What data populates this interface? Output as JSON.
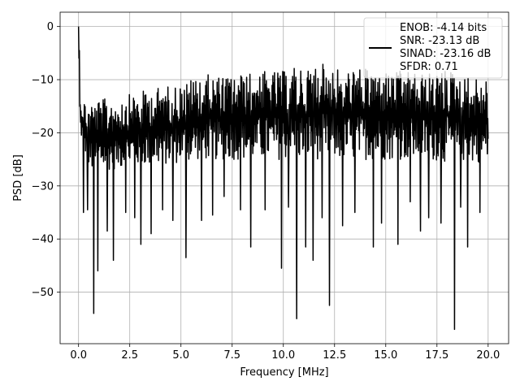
{
  "chart_data": {
    "type": "line",
    "title": "",
    "xlabel": "Frequency [MHz]",
    "ylabel": "PSD [dB]",
    "xlim": [
      -0.9,
      21.0
    ],
    "ylim": [
      -59.7,
      2.7
    ],
    "xticks": [
      0.0,
      2.5,
      5.0,
      7.5,
      10.0,
      12.5,
      15.0,
      17.5,
      20.0
    ],
    "xtick_labels": [
      "0.0",
      "2.5",
      "5.0",
      "7.5",
      "10.0",
      "12.5",
      "15.0",
      "17.5",
      "20.0"
    ],
    "yticks": [
      0,
      -10,
      -20,
      -30,
      -40,
      -50
    ],
    "ytick_labels": [
      "0",
      "−10",
      "−20",
      "−30",
      "−40",
      "−50"
    ],
    "grid": true,
    "line_color": "#000000",
    "legend": {
      "placement": "top-right",
      "entries": [
        "ENOB: -4.14 bits",
        "SNR: -23.13 dB",
        "SINAD: -23.16 dB",
        "SFDR: 0.71"
      ]
    },
    "series": [
      {
        "x_range": [
          0.0,
          20.0
        ],
        "approx_points": 1000,
        "upper_envelope": [
          [
            0.0,
            0.0
          ],
          [
            0.05,
            -3
          ],
          [
            0.1,
            -13
          ],
          [
            0.5,
            -13.5
          ],
          [
            1.0,
            -13
          ],
          [
            2.0,
            -12.5
          ],
          [
            3.0,
            -11.5
          ],
          [
            4.0,
            -10.5
          ],
          [
            5.0,
            -10
          ],
          [
            6.0,
            -8
          ],
          [
            7.0,
            -8.5
          ],
          [
            8.0,
            -8
          ],
          [
            9.0,
            -7.5
          ],
          [
            10.0,
            -7.5
          ],
          [
            11.0,
            -6
          ],
          [
            12.0,
            -6
          ],
          [
            13.0,
            -7
          ],
          [
            14.0,
            -7
          ],
          [
            15.0,
            -7.5
          ],
          [
            16.0,
            -7.5
          ],
          [
            17.0,
            -8
          ],
          [
            18.0,
            -7
          ],
          [
            19.0,
            -8.5
          ],
          [
            20.0,
            -9
          ]
        ],
        "lower_envelope": [
          [
            0.0,
            -19
          ],
          [
            0.5,
            -28
          ],
          [
            1.0,
            -28
          ],
          [
            2.0,
            -27.5
          ],
          [
            3.0,
            -27
          ],
          [
            4.0,
            -27
          ],
          [
            5.0,
            -26.5
          ],
          [
            6.0,
            -26
          ],
          [
            7.0,
            -26
          ],
          [
            8.0,
            -26
          ],
          [
            9.0,
            -26
          ],
          [
            10.0,
            -26
          ],
          [
            11.0,
            -26
          ],
          [
            12.0,
            -26
          ],
          [
            13.0,
            -26
          ],
          [
            14.0,
            -26
          ],
          [
            15.0,
            -26
          ],
          [
            16.0,
            -26
          ],
          [
            17.0,
            -26
          ],
          [
            18.0,
            -26.5
          ],
          [
            19.0,
            -26.5
          ],
          [
            20.0,
            -26.5
          ]
        ],
        "notable_dips": [
          [
            0.25,
            -35
          ],
          [
            0.45,
            -34.5
          ],
          [
            0.75,
            -54
          ],
          [
            0.95,
            -46
          ],
          [
            1.4,
            -38.5
          ],
          [
            1.7,
            -44
          ],
          [
            2.3,
            -35
          ],
          [
            2.75,
            -36
          ],
          [
            3.05,
            -41
          ],
          [
            3.55,
            -39
          ],
          [
            4.1,
            -34.5
          ],
          [
            4.6,
            -36.5
          ],
          [
            5.25,
            -43.5
          ],
          [
            6.0,
            -36.5
          ],
          [
            6.55,
            -35.5
          ],
          [
            7.1,
            -32
          ],
          [
            7.9,
            -34.5
          ],
          [
            8.4,
            -41.5
          ],
          [
            9.1,
            -34.5
          ],
          [
            9.9,
            -45.5
          ],
          [
            10.25,
            -34
          ],
          [
            10.65,
            -55
          ],
          [
            11.1,
            -41.5
          ],
          [
            11.45,
            -44
          ],
          [
            11.9,
            -36
          ],
          [
            12.25,
            -52.5
          ],
          [
            12.9,
            -37.5
          ],
          [
            13.5,
            -35
          ],
          [
            14.4,
            -41.5
          ],
          [
            14.8,
            -37
          ],
          [
            15.6,
            -41
          ],
          [
            16.2,
            -33
          ],
          [
            16.7,
            -38.5
          ],
          [
            17.1,
            -36
          ],
          [
            17.7,
            -37
          ],
          [
            18.35,
            -57
          ],
          [
            18.65,
            -34
          ],
          [
            19.0,
            -41.5
          ],
          [
            19.6,
            -35
          ]
        ]
      }
    ]
  }
}
